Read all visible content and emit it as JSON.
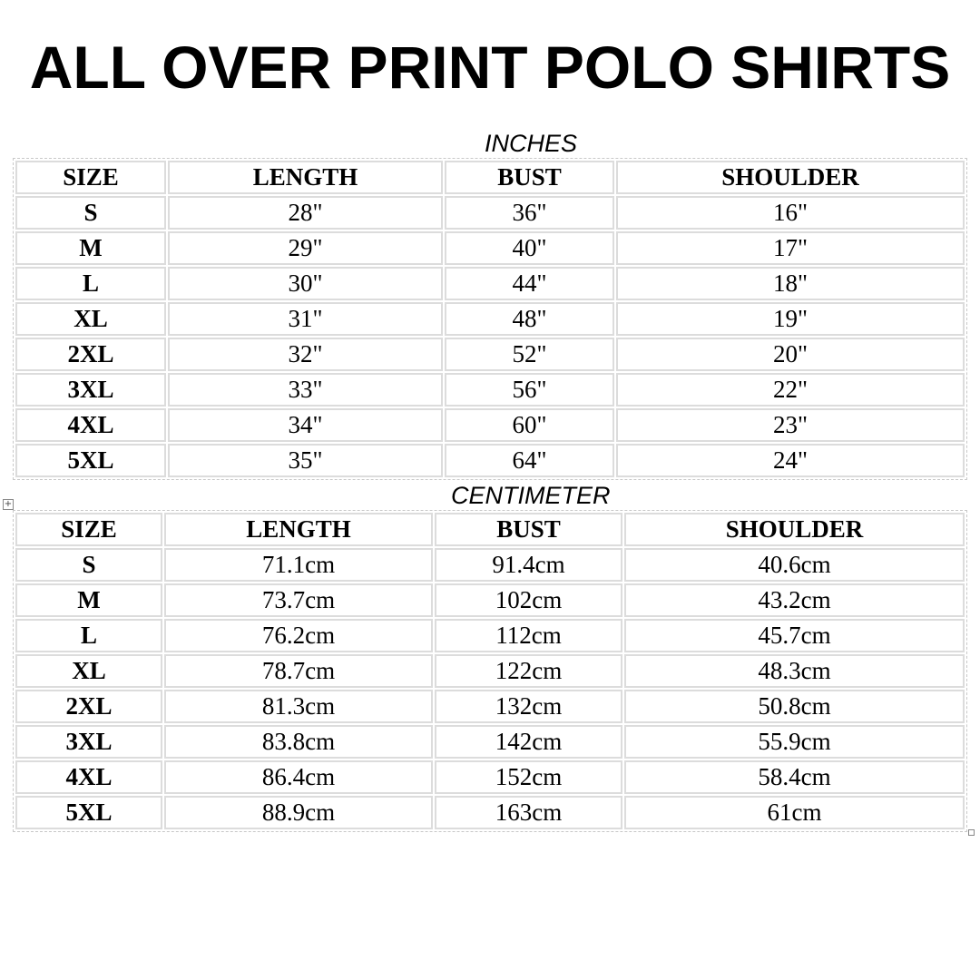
{
  "title": "ALL OVER PRINT POLO SHIRTS",
  "tables": [
    {
      "caption": "INCHES",
      "headers": [
        "SIZE",
        "LENGTH",
        "BUST",
        "SHOULDER"
      ],
      "rows": [
        [
          "S",
          "28\"",
          "36\"",
          "16\""
        ],
        [
          "M",
          "29\"",
          "40\"",
          "17\""
        ],
        [
          "L",
          "30\"",
          "44\"",
          "18\""
        ],
        [
          "XL",
          "31\"",
          "48\"",
          "19\""
        ],
        [
          "2XL",
          "32\"",
          "52\"",
          "20\""
        ],
        [
          "3XL",
          "33\"",
          "56\"",
          "22\""
        ],
        [
          "4XL",
          "34\"",
          "60\"",
          "23\""
        ],
        [
          "5XL",
          "35\"",
          "64\"",
          "24\""
        ]
      ]
    },
    {
      "caption": "CENTIMETER",
      "headers": [
        "SIZE",
        "LENGTH",
        "BUST",
        "SHOULDER"
      ],
      "rows": [
        [
          "S",
          "71.1cm",
          "91.4cm",
          "40.6cm"
        ],
        [
          "M",
          "73.7cm",
          "102cm",
          "43.2cm"
        ],
        [
          "L",
          "76.2cm",
          "112cm",
          "45.7cm"
        ],
        [
          "XL",
          "78.7cm",
          "122cm",
          "48.3cm"
        ],
        [
          "2XL",
          "81.3cm",
          "132cm",
          "50.8cm"
        ],
        [
          "3XL",
          "83.8cm",
          "142cm",
          "55.9cm"
        ],
        [
          "4XL",
          "86.4cm",
          "152cm",
          "58.4cm"
        ],
        [
          "5XL",
          "88.9cm",
          "163cm",
          "61cm"
        ]
      ]
    }
  ],
  "icons": {
    "table_move": "move-handle-icon",
    "table_resize": "resize-handle-icon"
  }
}
